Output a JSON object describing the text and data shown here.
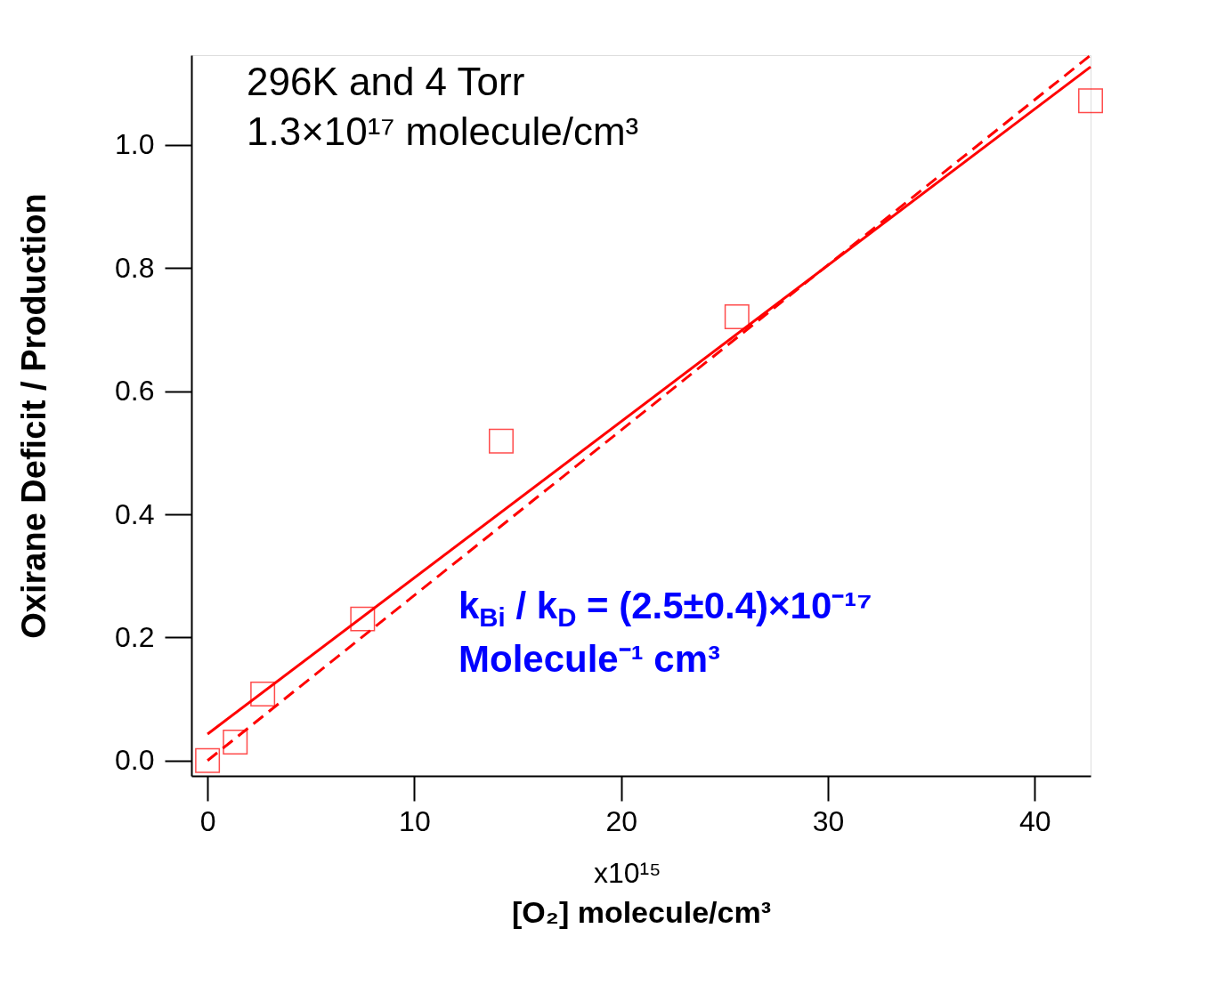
{
  "chart_data": {
    "type": "scatter",
    "xlabel": "[O₂] molecule/cm³",
    "ylabel": "Oxirane Deficit / Production",
    "xlim": [
      -0.78,
      42.7
    ],
    "ylim": [
      -0.025,
      1.146
    ],
    "xticks": [
      0,
      10,
      20,
      30,
      40
    ],
    "yticks": [
      {
        "value": 0,
        "label": "0.0"
      },
      0.2,
      0.4,
      0.6,
      0.8,
      {
        "value": 1,
        "label": "1.0"
      }
    ],
    "grid": false,
    "series": [
      {
        "marker": "square",
        "color": "#ff0000",
        "x": [
          0,
          1.34,
          2.67,
          7.5,
          14.2,
          25.6,
          42.7
        ],
        "values": [
          0.0,
          0.03,
          0.108,
          0.23,
          0.519,
          0.721,
          1.072
        ]
      },
      {
        "type": "line",
        "line_style": "solid",
        "color": "#ff0000",
        "x": [
          0,
          42.7
        ],
        "values": [
          0.043,
          1.127
        ]
      },
      {
        "type": "line",
        "line_style": "dashed",
        "color": "#ff0000",
        "x": [
          0,
          42.7
        ],
        "values": [
          0.0,
          1.146
        ]
      }
    ],
    "annotations": [
      "296K and 4 Torr",
      "1.3×10¹⁷ molecule/cm³",
      "k$_{Bi}$ / k$_{D}$ = (2.5±0.4)×10⁻¹⁷",
      "Molecule⁻¹ cm³",
      "x10¹⁵"
    ]
  }
}
